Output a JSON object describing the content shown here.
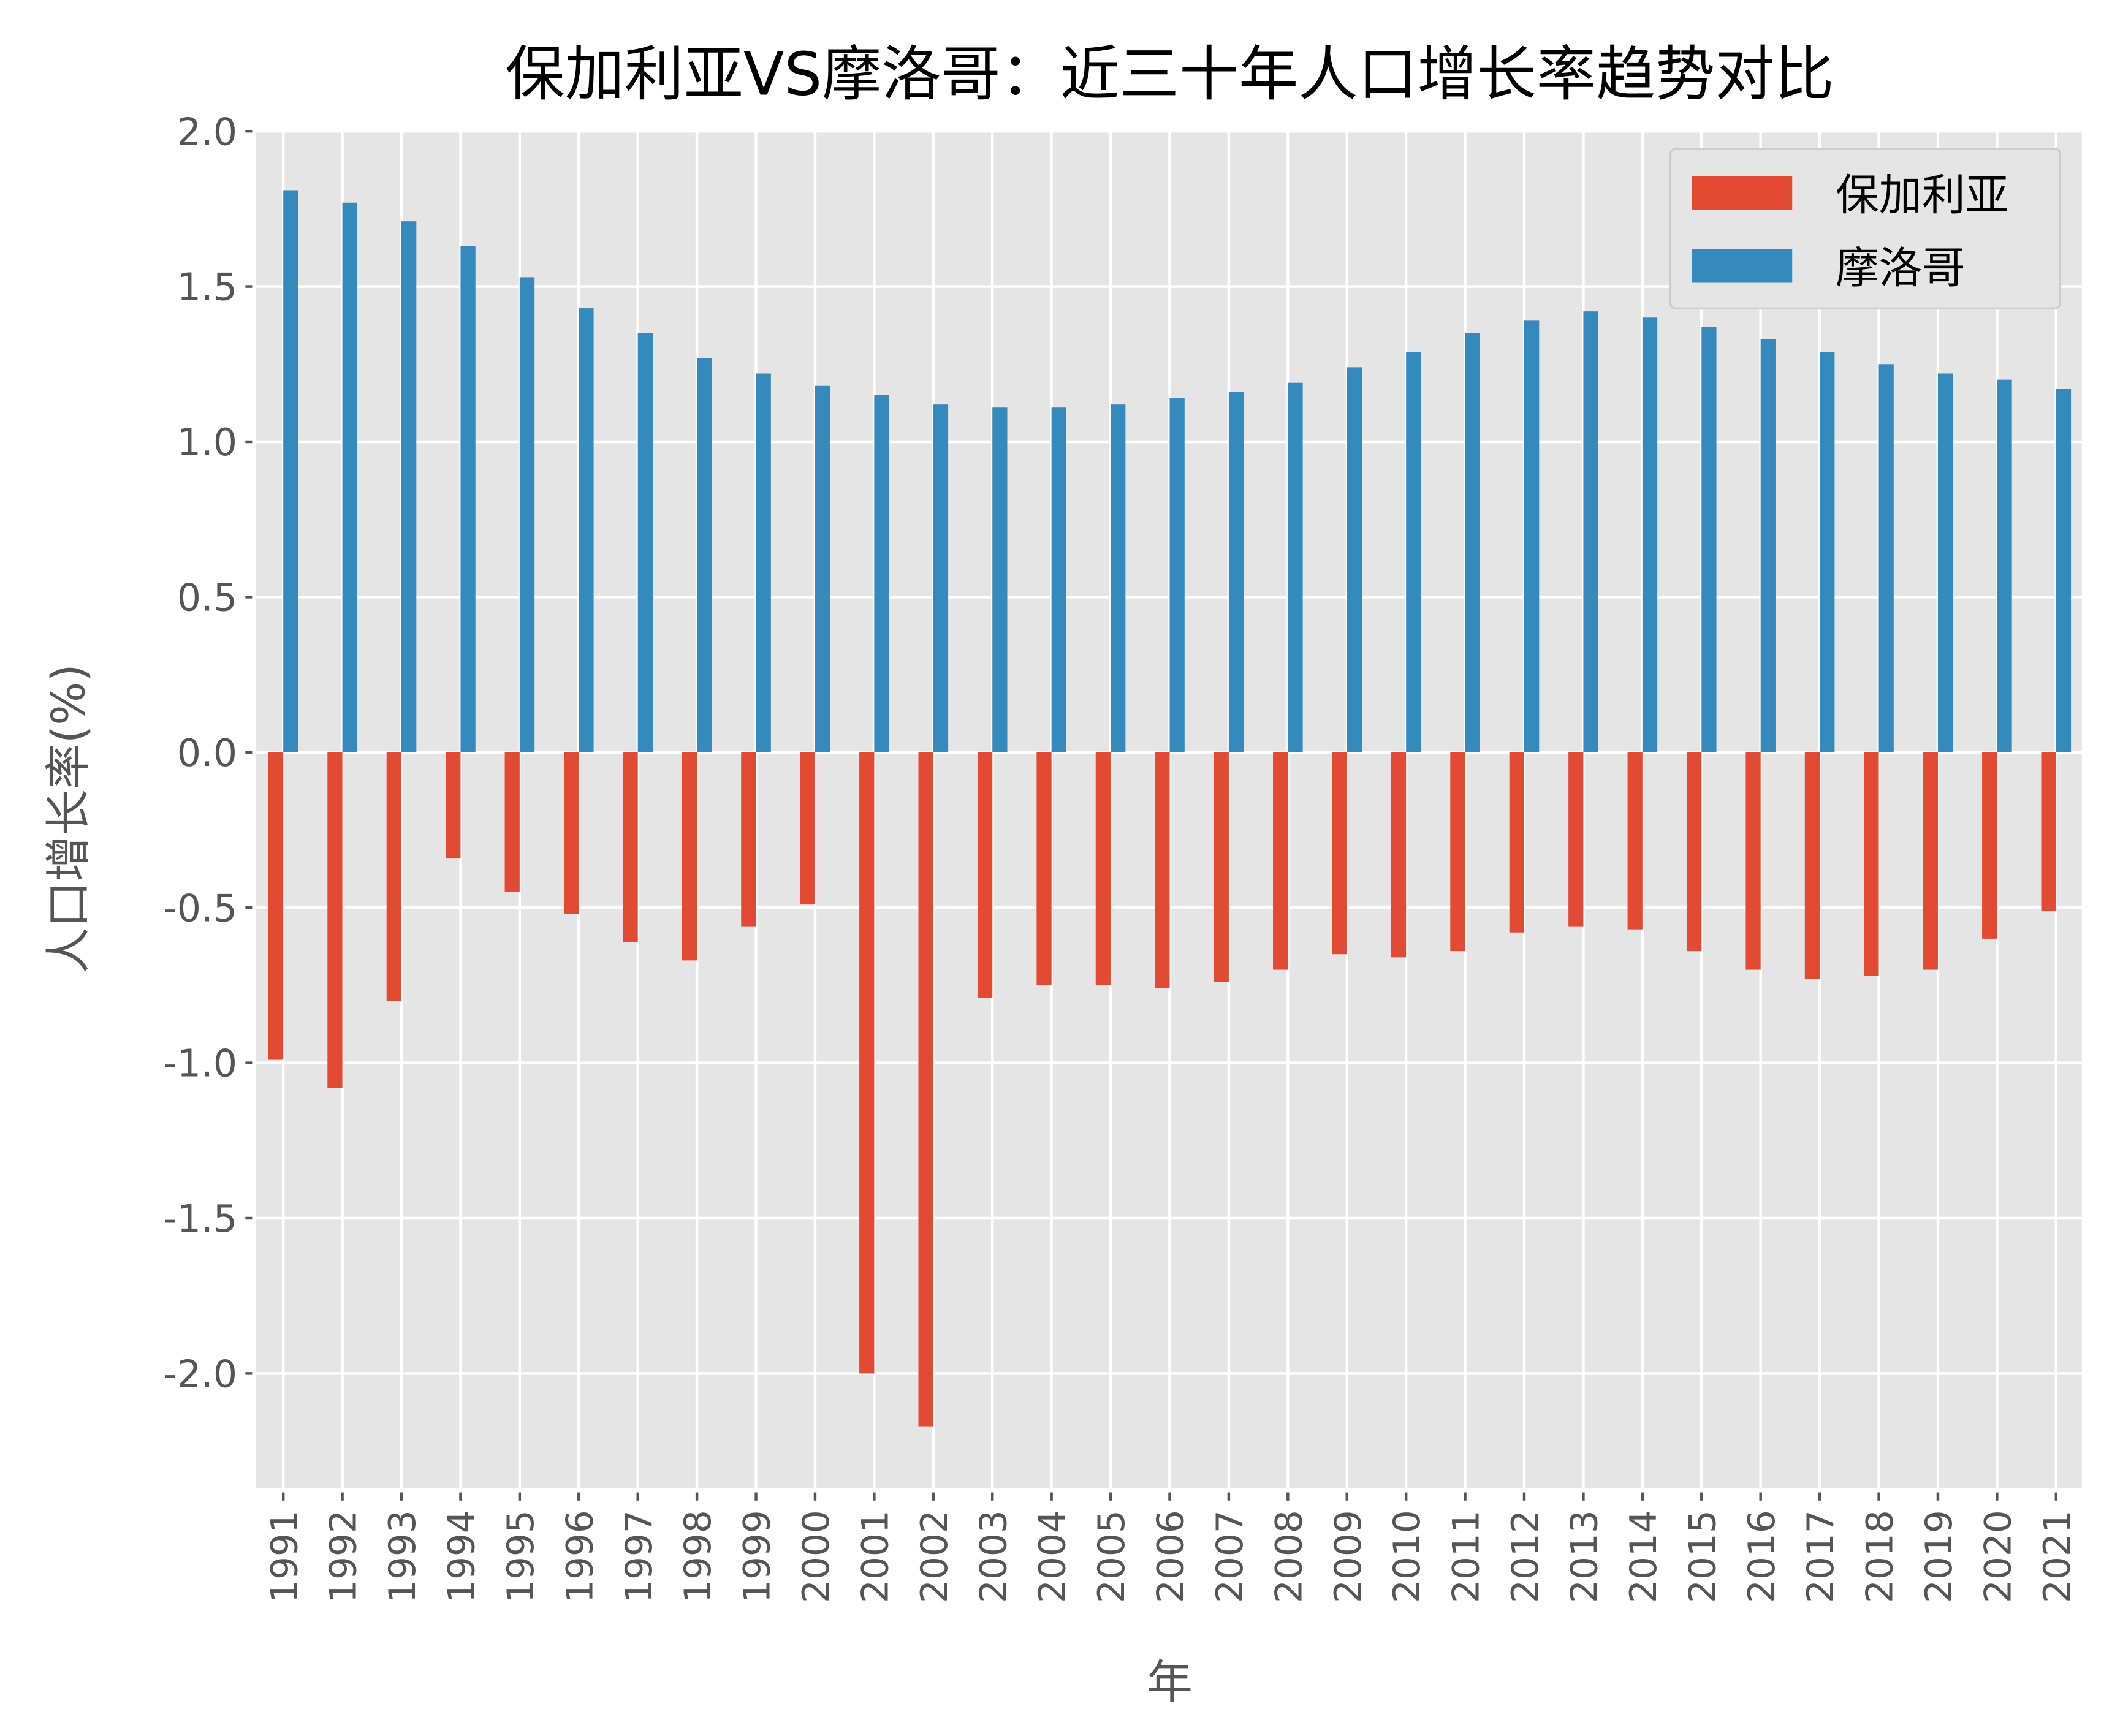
{
  "chart_data": {
    "type": "bar",
    "title": "保加利亚VS摩洛哥：近三十年人口增长率趋势对比",
    "xlabel": "年",
    "ylabel": "人口增长率(%)",
    "ylim": [
      -2.37,
      2.0
    ],
    "yticks": [
      "2.0",
      "1.5",
      "1.0",
      "0.5",
      "0.0",
      "-0.5",
      "-1.0",
      "-1.5",
      "-2.0"
    ],
    "grid": true,
    "legend_position": "top-right",
    "categories": [
      "1991",
      "1992",
      "1993",
      "1994",
      "1995",
      "1996",
      "1997",
      "1998",
      "1999",
      "2000",
      "2001",
      "2002",
      "2003",
      "2004",
      "2005",
      "2006",
      "2007",
      "2008",
      "2009",
      "2010",
      "2011",
      "2012",
      "2013",
      "2014",
      "2015",
      "2016",
      "2017",
      "2018",
      "2019",
      "2020",
      "2021"
    ],
    "series": [
      {
        "name": "保加利亚",
        "color": "#E24A33",
        "values": [
          -0.99,
          -1.08,
          -0.8,
          -0.34,
          -0.45,
          -0.52,
          -0.61,
          -0.67,
          -0.56,
          -0.49,
          -2.0,
          -2.17,
          -0.79,
          -0.75,
          -0.75,
          -0.76,
          -0.74,
          -0.7,
          -0.65,
          -0.66,
          -0.64,
          -0.58,
          -0.56,
          -0.57,
          -0.64,
          -0.7,
          -0.73,
          -0.72,
          -0.7,
          -0.6,
          -0.51
        ]
      },
      {
        "name": "摩洛哥",
        "color": "#348ABD",
        "values": [
          1.81,
          1.77,
          1.71,
          1.63,
          1.53,
          1.43,
          1.35,
          1.27,
          1.22,
          1.18,
          1.15,
          1.12,
          1.11,
          1.11,
          1.12,
          1.14,
          1.16,
          1.19,
          1.24,
          1.29,
          1.35,
          1.39,
          1.42,
          1.4,
          1.37,
          1.33,
          1.29,
          1.25,
          1.22,
          1.2,
          1.17
        ]
      }
    ]
  }
}
